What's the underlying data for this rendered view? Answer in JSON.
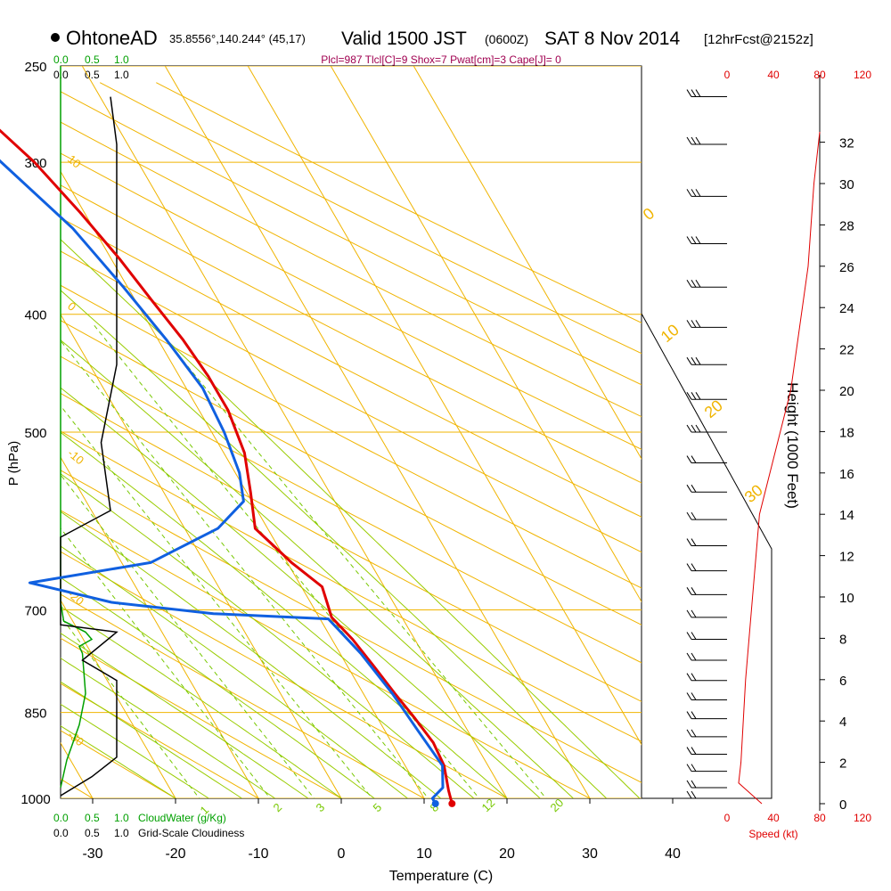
{
  "header": {
    "station": "OhtoneAD",
    "coords": "35.8556°,140.244° (45,17)",
    "valid_prefix": "Valid 1500 JST",
    "zulu": "(0600Z)",
    "date": "SAT 8 Nov 2014",
    "forecast": "[12hrFcst@2152z]",
    "indices": "Plcl=987 Tlcl[C]=9 Shox=7 Pwat[cm]=3 Cape[J]= 0"
  },
  "colors": {
    "isobar": "#f0b400",
    "isotherm": "#f0b400",
    "dry_adiabat": "#f0b400",
    "moist_adiabat": "#99cc00",
    "mixing_ratio": "#77c800",
    "temperature": "#e00000",
    "dewpoint": "#1060e0",
    "cloud_water": "#00a000",
    "cloudiness": "#000000",
    "speed_axis": "#e00000",
    "indices_text": "#a00050"
  },
  "left_panel": {
    "top_green": [
      "0.0",
      "0.5",
      "1.0"
    ],
    "top_black": [
      "0.0",
      "0.5",
      "1.0"
    ],
    "bottom_green": [
      "0.0",
      "0.5",
      "1.0"
    ],
    "bottom_black": [
      "0.0",
      "0.5",
      "1.0"
    ],
    "cloudwater_label": "CloudWater (g/Kg)",
    "cloudiness_label": "Grid-Scale Cloudiness"
  },
  "right_panel": {
    "height_title": "Height (1000 Feet)",
    "height_ticks": [
      32,
      30,
      28,
      26,
      24,
      22,
      20,
      18,
      16,
      14,
      12,
      10,
      8,
      6,
      4,
      2,
      0
    ],
    "speed_ticks": [
      "0",
      "40",
      "80",
      "120"
    ],
    "speed_label": "Speed (kt)"
  },
  "chart_data": {
    "type": "skew-t",
    "xlabel": "Temperature (C)",
    "ylabel": "P (hPa)",
    "x_ticks": [
      -30,
      -20,
      -10,
      0,
      10,
      20,
      30,
      40
    ],
    "p_ticks": [
      250,
      300,
      400,
      500,
      700,
      850,
      1000
    ],
    "temp_range": [
      -34,
      46
    ],
    "p_range": [
      250,
      1018
    ],
    "isopleth_labels": {
      "dry_adiabat": [
        "10",
        "0",
        "-10",
        "-20",
        "-30"
      ],
      "moist_adiabat": [
        "0",
        "10",
        "20",
        "30"
      ],
      "mixing_ratio": [
        "1",
        "2",
        "3",
        "5",
        "8",
        "12",
        "20"
      ]
    },
    "temperature": [
      {
        "p": 265,
        "t": 3.5
      },
      {
        "p": 300,
        "t": 7.5
      },
      {
        "p": 330,
        "t": 9.5
      },
      {
        "p": 360,
        "t": 11.0
      },
      {
        "p": 390,
        "t": 12.0
      },
      {
        "p": 420,
        "t": 13.0
      },
      {
        "p": 450,
        "t": 13.5
      },
      {
        "p": 480,
        "t": 13.5
      },
      {
        "p": 520,
        "t": 12.5
      },
      {
        "p": 560,
        "t": 10.5
      },
      {
        "p": 600,
        "t": 8.5
      },
      {
        "p": 640,
        "t": 10.5
      },
      {
        "p": 670,
        "t": 12.5
      },
      {
        "p": 690,
        "t": 12.0
      },
      {
        "p": 710,
        "t": 11.5
      },
      {
        "p": 740,
        "t": 12.5
      },
      {
        "p": 780,
        "t": 13.2
      },
      {
        "p": 820,
        "t": 13.8
      },
      {
        "p": 860,
        "t": 14.5
      },
      {
        "p": 900,
        "t": 15.0
      },
      {
        "p": 940,
        "t": 14.7
      },
      {
        "p": 985,
        "t": 13.5
      },
      {
        "p": 1010,
        "t": 13.0
      }
    ],
    "dewpoint": [
      {
        "p": 265,
        "t": -0.5
      },
      {
        "p": 300,
        "t": 3.5
      },
      {
        "p": 340,
        "t": 7.5
      },
      {
        "p": 380,
        "t": 9.5
      },
      {
        "p": 420,
        "t": 11.0
      },
      {
        "p": 460,
        "t": 12.0
      },
      {
        "p": 500,
        "t": 11.5
      },
      {
        "p": 540,
        "t": 10.5
      },
      {
        "p": 570,
        "t": 9.0
      },
      {
        "p": 600,
        "t": 4.0
      },
      {
        "p": 640,
        "t": -6.5
      },
      {
        "p": 665,
        "t": -22.5
      },
      {
        "p": 690,
        "t": -14.0
      },
      {
        "p": 705,
        "t": -2.5
      },
      {
        "p": 712,
        "t": 11.0
      },
      {
        "p": 760,
        "t": 12.5
      },
      {
        "p": 820,
        "t": 13.5
      },
      {
        "p": 880,
        "t": 14.0
      },
      {
        "p": 940,
        "t": 14.5
      },
      {
        "p": 980,
        "t": 13.0
      },
      {
        "p": 1000,
        "t": 11.0
      },
      {
        "p": 1010,
        "t": 11.0
      }
    ],
    "cloud_water": [
      {
        "p": 250,
        "v": 0.0
      },
      {
        "p": 690,
        "v": 0.0
      },
      {
        "p": 715,
        "v": 0.05
      },
      {
        "p": 730,
        "v": 0.4
      },
      {
        "p": 740,
        "v": 0.5
      },
      {
        "p": 750,
        "v": 0.3
      },
      {
        "p": 760,
        "v": 0.35
      },
      {
        "p": 820,
        "v": 0.4
      },
      {
        "p": 870,
        "v": 0.3
      },
      {
        "p": 930,
        "v": 0.1
      },
      {
        "p": 980,
        "v": 0.0
      }
    ],
    "cloudiness": [
      {
        "p": 265,
        "v": 0.8
      },
      {
        "p": 290,
        "v": 0.9
      },
      {
        "p": 440,
        "v": 0.9
      },
      {
        "p": 510,
        "v": 0.65
      },
      {
        "p": 580,
        "v": 0.8
      },
      {
        "p": 610,
        "v": 0.0
      },
      {
        "p": 720,
        "v": 0.0
      },
      {
        "p": 730,
        "v": 0.9
      },
      {
        "p": 770,
        "v": 0.35
      },
      {
        "p": 800,
        "v": 0.9
      },
      {
        "p": 925,
        "v": 0.9
      },
      {
        "p": 960,
        "v": 0.5
      },
      {
        "p": 995,
        "v": 0.0
      }
    ],
    "wind_speed": [
      {
        "h": 0,
        "v": 30
      },
      {
        "h": 1,
        "v": 10
      },
      {
        "h": 2,
        "v": 12
      },
      {
        "h": 6,
        "v": 16
      },
      {
        "h": 10,
        "v": 22
      },
      {
        "h": 14,
        "v": 28
      },
      {
        "h": 20,
        "v": 55
      },
      {
        "h": 26,
        "v": 70
      },
      {
        "h": 30,
        "v": 75
      },
      {
        "h": 32.5,
        "v": 80
      }
    ],
    "wind_barbs_pressures": [
      265,
      290,
      320,
      350,
      380,
      410,
      440,
      470,
      500,
      530,
      560,
      590,
      620,
      650,
      680,
      710,
      740,
      770,
      800,
      830,
      860,
      890,
      920,
      950,
      980,
      1000
    ]
  }
}
